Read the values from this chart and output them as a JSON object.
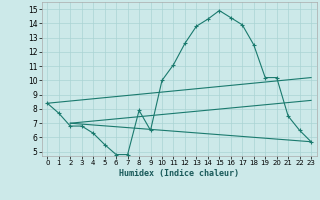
{
  "xlabel": "Humidex (Indice chaleur)",
  "xlim": [
    -0.5,
    23.5
  ],
  "ylim": [
    4.7,
    15.5
  ],
  "yticks": [
    5,
    6,
    7,
    8,
    9,
    10,
    11,
    12,
    13,
    14,
    15
  ],
  "xticks": [
    0,
    1,
    2,
    3,
    4,
    5,
    6,
    7,
    8,
    9,
    10,
    11,
    12,
    13,
    14,
    15,
    16,
    17,
    18,
    19,
    20,
    21,
    22,
    23
  ],
  "bg_color": "#cce9e9",
  "grid_color": "#aad4d4",
  "line_color": "#1a7a6e",
  "line1_x": [
    0,
    1,
    2,
    3,
    4,
    5,
    6,
    7,
    8,
    9,
    10,
    11,
    12,
    13,
    14,
    15,
    16,
    17,
    18,
    19,
    20,
    21,
    22,
    23
  ],
  "line1_y": [
    8.4,
    7.7,
    6.8,
    6.8,
    6.3,
    5.5,
    4.8,
    4.8,
    7.9,
    6.5,
    10.0,
    11.1,
    12.6,
    13.8,
    14.3,
    14.9,
    14.4,
    13.9,
    12.5,
    10.2,
    10.2,
    7.5,
    6.5,
    5.7
  ],
  "line2_x": [
    0,
    23
  ],
  "line2_y": [
    8.4,
    10.2
  ],
  "line3_x": [
    2,
    23
  ],
  "line3_y": [
    7.0,
    8.6
  ],
  "line4_x": [
    2,
    23
  ],
  "line4_y": [
    7.0,
    5.7
  ]
}
